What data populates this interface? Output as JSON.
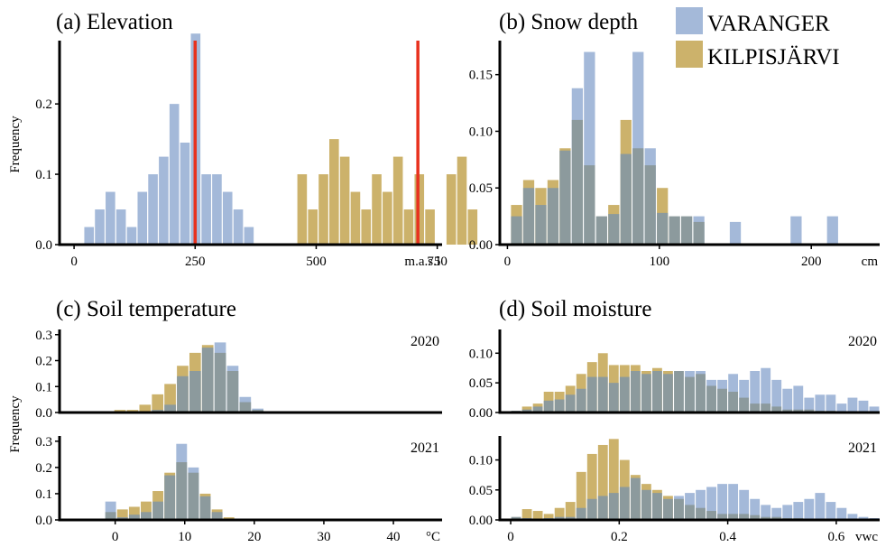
{
  "legend": [
    {
      "label": "VARANGER",
      "color": "#a4b9d9"
    },
    {
      "label": "KILPISJÄRVI",
      "color": "#ccb26b"
    }
  ],
  "colors": {
    "overlap": "#8c9a9d",
    "marker": "#e8321e",
    "axis": "#000000"
  },
  "y_label": "Frequency",
  "chart_data": [
    {
      "id": "a",
      "type": "bar",
      "title": "(a) Elevation",
      "xlabel": "m.a.s.l",
      "ylabel": "Frequency",
      "xlim": [
        -30,
        760
      ],
      "ylim": [
        0,
        0.29
      ],
      "xticks": [
        0,
        250,
        500,
        750
      ],
      "ytick_values": [
        0.0,
        0.1,
        0.2
      ],
      "ytick_labels": [
        "0.0",
        "0.1",
        "0.2"
      ],
      "bin_start": 20,
      "bin_width": 22,
      "vlines": [
        250,
        710
      ],
      "series": [
        {
          "name": "VARANGER",
          "values": [
            0.025,
            0.05,
            0.075,
            0.05,
            0.025,
            0.075,
            0.1,
            0.125,
            0.2,
            0.145,
            0.3,
            0.1,
            0.1,
            0.075,
            0.05,
            0.025
          ]
        },
        {
          "name": "KILPISJÄRVI",
          "offset": 20,
          "values": [
            0.1,
            0.05,
            0.1,
            0.15,
            0.125,
            0.075,
            0.05,
            0.1,
            0.075,
            0.125,
            0.05,
            0.1,
            0.05,
            0,
            0.1,
            0.125,
            0.05
          ]
        }
      ]
    },
    {
      "id": "b",
      "type": "bar",
      "title": "(b) Snow depth",
      "xlabel": "cm",
      "ylabel": "",
      "xlim": [
        -5,
        245
      ],
      "ylim": [
        0,
        0.18
      ],
      "xticks": [
        0,
        100,
        200
      ],
      "ytick_values": [
        0.0,
        0.05,
        0.1,
        0.15
      ],
      "ytick_labels": [
        "0.00",
        "0.05",
        "0.10",
        "0.15"
      ],
      "bin_start": 2,
      "bin_width": 8,
      "series": [
        {
          "name": "VARANGER",
          "values": [
            0.025,
            0.05,
            0.035,
            0.05,
            0.083,
            0.138,
            0.17,
            0.025,
            0.027,
            0.08,
            0.17,
            0.085,
            0.028,
            0.025,
            0.025,
            0.025,
            0,
            0,
            0.02,
            0,
            0,
            0,
            0,
            0.025,
            0,
            0,
            0.025
          ]
        },
        {
          "name": "KILPISJÄRVI",
          "values": [
            0.035,
            0.057,
            0.05,
            0.057,
            0.085,
            0.11,
            0.07,
            0.025,
            0.035,
            0.11,
            0.085,
            0.07,
            0.05,
            0.025,
            0.025,
            0.02,
            0,
            0,
            0,
            0,
            0,
            0,
            0,
            0,
            0,
            0,
            0
          ]
        }
      ]
    },
    {
      "id": "c2020",
      "type": "bar",
      "title": "(c) Soil temperature",
      "xlabel": "",
      "ylabel": "Frequency",
      "annotation": "2020",
      "xlim": [
        -8,
        47
      ],
      "ylim": [
        0,
        0.32
      ],
      "xticks": [],
      "ytick_values": [
        0.0,
        0.1,
        0.2,
        0.3
      ],
      "ytick_labels": [
        "0.0",
        "0.1",
        "0.2",
        "0.3"
      ],
      "bin_start": -2,
      "bin_width": 1.8,
      "series": [
        {
          "name": "VARANGER",
          "values": [
            0,
            0,
            0,
            0,
            0.01,
            0.03,
            0.14,
            0.16,
            0.25,
            0.27,
            0.18,
            0.06,
            0.015,
            0
          ]
        },
        {
          "name": "KILPISJÄRVI",
          "values": [
            0.005,
            0.01,
            0.01,
            0.03,
            0.07,
            0.11,
            0.18,
            0.23,
            0.26,
            0.23,
            0.16,
            0.04,
            0.01,
            0
          ]
        }
      ]
    },
    {
      "id": "c2021",
      "type": "bar",
      "title": "",
      "xlabel": "°C",
      "ylabel": "",
      "annotation": "2021",
      "xlim": [
        -8,
        47
      ],
      "ylim": [
        0,
        0.32
      ],
      "xticks": [
        0,
        10,
        20,
        30,
        40
      ],
      "ytick_values": [
        0.0,
        0.1,
        0.2,
        0.3
      ],
      "ytick_labels": [
        "0.0",
        "0.1",
        "0.2",
        "0.3"
      ],
      "bin_start": -1.5,
      "bin_width": 1.7,
      "series": [
        {
          "name": "VARANGER",
          "values": [
            0.07,
            0.01,
            0.02,
            0.03,
            0.07,
            0.17,
            0.29,
            0.2,
            0.09,
            0.03,
            0.005
          ]
        },
        {
          "name": "KILPISJÄRVI",
          "values": [
            0.03,
            0.04,
            0.05,
            0.07,
            0.11,
            0.18,
            0.22,
            0.18,
            0.1,
            0.04,
            0.01
          ]
        }
      ]
    },
    {
      "id": "d2020",
      "type": "bar",
      "title": "(d) Soil moisture",
      "xlabel": "",
      "ylabel": "",
      "annotation": "2020",
      "xlim": [
        -0.02,
        0.68
      ],
      "ylim": [
        0,
        0.14
      ],
      "xticks": [],
      "ytick_values": [
        0.0,
        0.05,
        0.1
      ],
      "ytick_labels": [
        "0.00",
        "0.05",
        "0.10"
      ],
      "bin_start": 0,
      "bin_width": 0.02,
      "series": [
        {
          "name": "VARANGER",
          "values": [
            0.003,
            0.005,
            0.01,
            0.02,
            0.022,
            0.03,
            0.04,
            0.06,
            0.06,
            0.05,
            0.06,
            0.07,
            0.065,
            0.07,
            0.065,
            0.07,
            0.07,
            0.07,
            0.055,
            0.055,
            0.065,
            0.055,
            0.07,
            0.075,
            0.055,
            0.04,
            0.045,
            0.025,
            0.03,
            0.03,
            0.015,
            0.025,
            0.02,
            0.01
          ]
        },
        {
          "name": "KILPISJÄRVI",
          "values": [
            0.003,
            0.01,
            0.015,
            0.035,
            0.035,
            0.045,
            0.065,
            0.085,
            0.1,
            0.08,
            0.08,
            0.08,
            0.07,
            0.075,
            0.07,
            0.07,
            0.06,
            0.065,
            0.045,
            0.04,
            0.035,
            0.025,
            0.015,
            0.015,
            0.01,
            0.005,
            0.005,
            0.005,
            0.003,
            0.003,
            0.002,
            0.002,
            0.002,
            0.002
          ]
        }
      ]
    },
    {
      "id": "d2021",
      "type": "bar",
      "title": "",
      "xlabel": "vwc",
      "ylabel": "",
      "annotation": "2021",
      "xlim": [
        -0.02,
        0.68
      ],
      "ylim": [
        0,
        0.14
      ],
      "xticks": [
        0,
        0.2,
        0.4,
        0.6
      ],
      "xtick_labels": [
        "0",
        "0.2",
        "0.4",
        "0.6"
      ],
      "ytick_values": [
        0.0,
        0.05,
        0.1
      ],
      "ytick_labels": [
        "0.00",
        "0.05",
        "0.10"
      ],
      "bin_start": 0,
      "bin_width": 0.02,
      "series": [
        {
          "name": "VARANGER",
          "values": [
            0.005,
            0.003,
            0.002,
            0.003,
            0.005,
            0.005,
            0.02,
            0.035,
            0.04,
            0.045,
            0.055,
            0.07,
            0.05,
            0.045,
            0.035,
            0.04,
            0.045,
            0.05,
            0.055,
            0.06,
            0.06,
            0.05,
            0.035,
            0.025,
            0.02,
            0.025,
            0.03,
            0.035,
            0.045,
            0.03,
            0.02,
            0.01,
            0.005,
            0.003
          ]
        },
        {
          "name": "KILPISJÄRVI",
          "values": [
            0.005,
            0.018,
            0.015,
            0.01,
            0.02,
            0.03,
            0.08,
            0.11,
            0.125,
            0.135,
            0.1,
            0.075,
            0.06,
            0.05,
            0.04,
            0.035,
            0.025,
            0.02,
            0.015,
            0.01,
            0.01,
            0.01,
            0.008,
            0.005,
            0.005,
            0.003,
            0.003,
            0.002,
            0.002,
            0.002,
            0.002,
            0.001,
            0.001,
            0.001
          ]
        }
      ]
    }
  ]
}
